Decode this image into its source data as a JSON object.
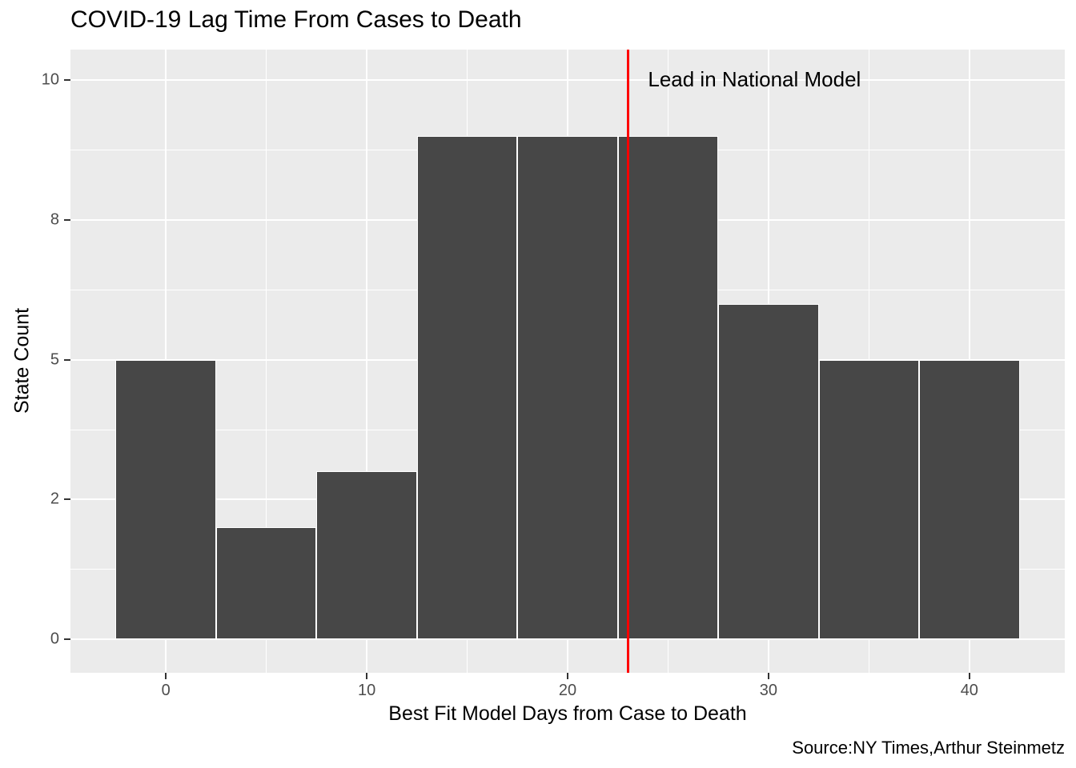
{
  "chart_data": {
    "type": "bar",
    "subtype": "histogram",
    "title": "COVID-19 Lag Time From Cases to Death",
    "xlabel": "Best Fit Model Days from Case to Death",
    "ylabel": "State Count",
    "caption": "Source:NY Times,Arthur Steinmetz",
    "categories": [
      0,
      5,
      10,
      15,
      20,
      25,
      30,
      35,
      40
    ],
    "values": [
      5,
      2,
      3,
      9,
      9,
      9,
      6,
      5,
      5
    ],
    "bin_width": 5,
    "xlim": [
      -4.75,
      44.75
    ],
    "ylim": [
      -0.6,
      10.55
    ],
    "x_major_ticks": [
      {
        "value": 0,
        "label": "0"
      },
      {
        "value": 10,
        "label": "10"
      },
      {
        "value": 20,
        "label": "20"
      },
      {
        "value": 30,
        "label": "30"
      },
      {
        "value": 40,
        "label": "40"
      }
    ],
    "x_minor_ticks": [
      5,
      15,
      25,
      35
    ],
    "y_major_ticks": [
      {
        "value": 0,
        "label": "0"
      },
      {
        "value": 2.5,
        "label": "2"
      },
      {
        "value": 5,
        "label": "5"
      },
      {
        "value": 7.5,
        "label": "8"
      },
      {
        "value": 10,
        "label": "10"
      }
    ],
    "y_minor_ticks": [
      1.25,
      3.75,
      6.25,
      8.75
    ],
    "vline": {
      "x": 23,
      "color": "#FF0000",
      "label": "Lead in National Model",
      "label_x": 24,
      "label_y": 10
    },
    "grid": true,
    "legend": "none",
    "colors": {
      "bar_fill": "#474747",
      "bar_border": "#FFFFFF",
      "panel_bg": "#EBEBEB",
      "gridline": "#FFFFFF",
      "tick_label": "#4D4D4D",
      "tick_mark": "#333333",
      "text": "#000000",
      "background": "#FFFFFF"
    }
  }
}
